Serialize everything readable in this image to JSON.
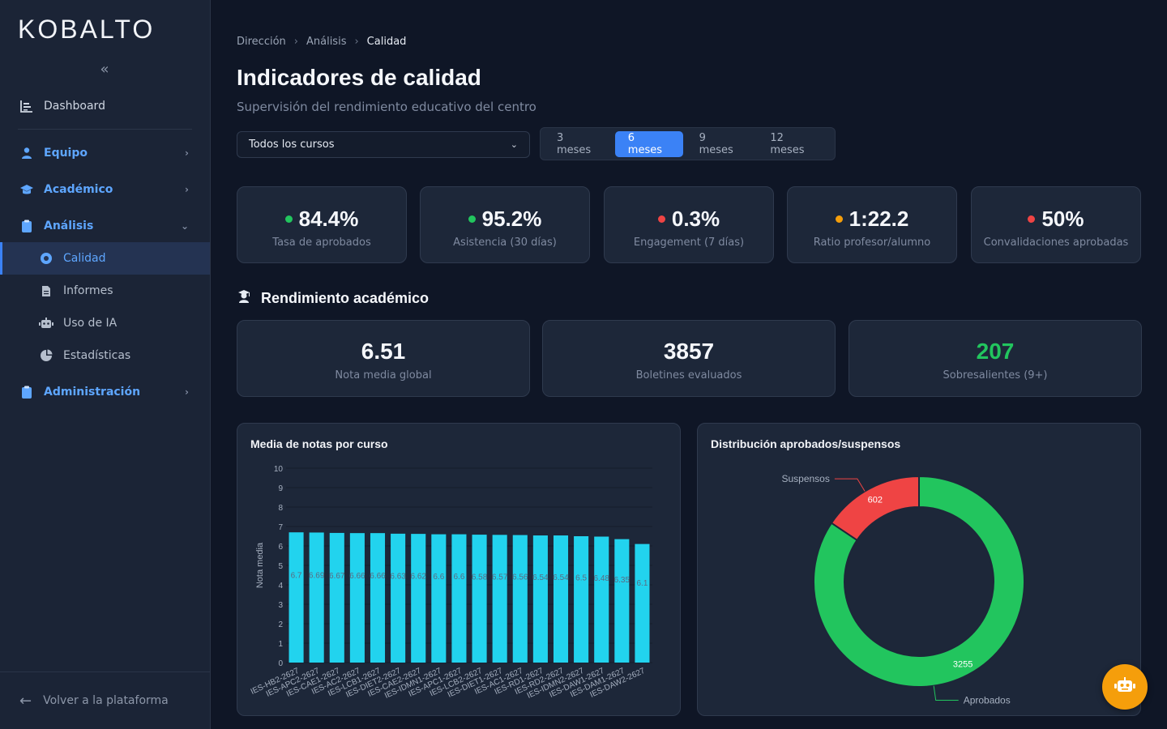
{
  "brand": "KOBALTO",
  "sidebar": {
    "dashboard": "Dashboard",
    "equipo": "Equipo",
    "academico": "Académico",
    "analisis": "Análisis",
    "calidad": "Calidad",
    "informes": "Informes",
    "uso_ia": "Uso de IA",
    "estadisticas": "Estadísticas",
    "administracion": "Administración",
    "back": "Volver a la plataforma"
  },
  "breadcrumb": [
    "Dirección",
    "Análisis",
    "Calidad"
  ],
  "page": {
    "title": "Indicadores de calidad",
    "subtitle": "Supervisión del rendimiento educativo del centro"
  },
  "filters": {
    "course_select": "Todos los cursos",
    "ranges": [
      "3 meses",
      "6 meses",
      "9 meses",
      "12 meses"
    ],
    "active_range": "6 meses"
  },
  "kpis": [
    {
      "value": "84.4%",
      "label": "Tasa de aprobados",
      "status_color": "#22c55e"
    },
    {
      "value": "95.2%",
      "label": "Asistencia (30 días)",
      "status_color": "#22c55e"
    },
    {
      "value": "0.3%",
      "label": "Engagement (7 días)",
      "status_color": "#ef4444"
    },
    {
      "value": "1:22.2",
      "label": "Ratio profesor/alumno",
      "status_color": "#f59e0b"
    },
    {
      "value": "50%",
      "label": "Convalidaciones aprobadas",
      "status_color": "#ef4444"
    }
  ],
  "section": {
    "title": "Rendimiento académico"
  },
  "stats": [
    {
      "value": "6.51",
      "label": "Nota media global",
      "color": "#f5f7fb"
    },
    {
      "value": "3857",
      "label": "Boletines evaluados",
      "color": "#f5f7fb"
    },
    {
      "value": "207",
      "label": "Sobresalientes (9+)",
      "color": "#22c55e"
    }
  ],
  "chart_data": [
    {
      "type": "bar",
      "title": "Media de notas por curso",
      "ylabel": "Nota media",
      "ylim": [
        0,
        10
      ],
      "yticks": [
        0,
        1,
        2,
        3,
        4,
        5,
        6,
        7,
        8,
        9,
        10
      ],
      "color": "#22d3ee",
      "categories": [
        "IES-HB2-2627",
        "IES-APC2-2627",
        "IES-CAE1-2627",
        "IES-AC2-2627",
        "IES-LCB1-2627",
        "IES-DIET2-2627",
        "IES-CAE2-2627",
        "IES-IDMN1-2627",
        "IES-APC1-2627",
        "IES-LCB2-2627",
        "IES-DIET1-2627",
        "IES-AC1-2627",
        "IES-RD1-2627",
        "IES-RD2-2627",
        "IES-IDMN2-2627",
        "IES-DAW1-2627",
        "IES-DAM1-2627",
        "IES-DAW2-2627"
      ],
      "values": [
        6.7,
        6.69,
        6.67,
        6.66,
        6.66,
        6.63,
        6.62,
        6.6,
        6.6,
        6.58,
        6.57,
        6.56,
        6.54,
        6.54,
        6.5,
        6.48,
        6.35,
        6.1
      ]
    },
    {
      "type": "pie",
      "title": "Distribución aprobados/suspensos",
      "slices": [
        {
          "label": "Aprobados",
          "value": 3255,
          "color": "#22c55e"
        },
        {
          "label": "Suspensos",
          "value": 602,
          "color": "#ef4444"
        }
      ]
    }
  ]
}
